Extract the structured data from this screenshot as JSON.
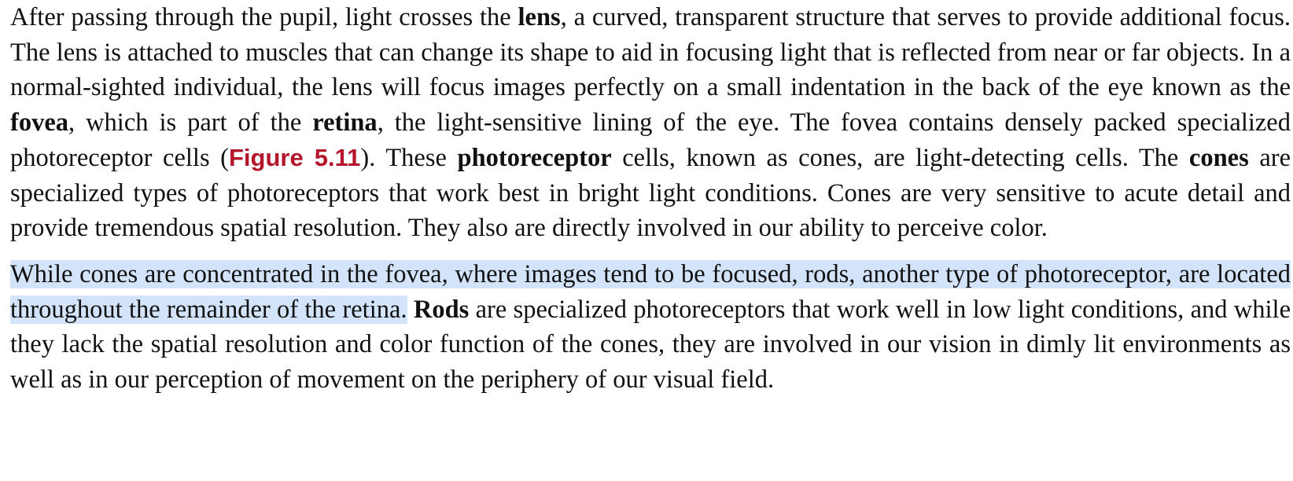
{
  "document": {
    "paragraphs": [
      {
        "p1_t1": "After passing through the pupil, light crosses the ",
        "p1_b1": "lens",
        "p1_t2": ", a curved, transparent structure that serves to provide additional focus. The lens is attached to muscles that can change its shape to aid in focusing light that is reflected from near or far objects. In a normal-sighted individual, the lens will focus images perfectly on a small indentation in the back of the eye known as the ",
        "p1_b2": "fovea",
        "p1_t3": ", which is part of the ",
        "p1_b3": "retina",
        "p1_t4": ", the light-sensitive lining of the eye. The fovea contains densely packed specialized photoreceptor cells (",
        "p1_link": "Figure 5.11",
        "p1_t5": "). These ",
        "p1_b4": "photoreceptor",
        "p1_t6": " cells, known as cones, are light-detecting cells. The ",
        "p1_b5": "cones",
        "p1_t7": " are specialized types of photoreceptors that work best in bright light conditions. Cones are very sensitive to acute detail and provide tremendous spatial resolution. They also are directly involved in our ability to perceive color."
      },
      {
        "p2_highlight": "While cones are concentrated in the fovea, where images tend to be focused, rods, another type of photoreceptor, are located throughout the remainder of the retina.",
        "p2_space": " ",
        "p2_b1": "Rods",
        "p2_t1": " are specialized photoreceptors that work well in low light conditions, and while they lack the spatial resolution and color function of the cones, they are involved in our vision in dimly lit environments as well as in our perception of movement on the periphery of our visual field."
      }
    ]
  },
  "colors": {
    "text": "#111111",
    "link": "#b5152b",
    "selection_highlight": "#d3e3f9",
    "background": "#ffffff"
  }
}
